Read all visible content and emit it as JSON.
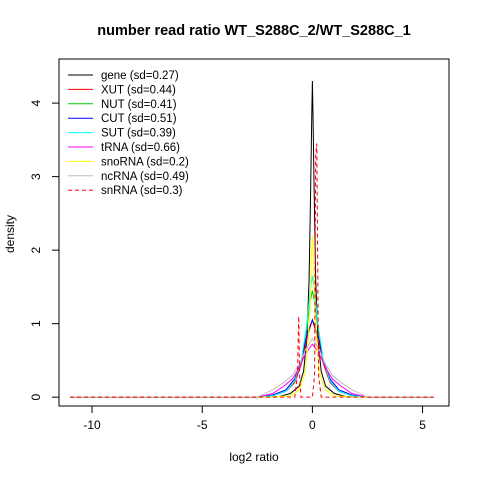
{
  "chart_data": {
    "type": "line",
    "title": "number read ratio WT_S288C_2/WT_S288C_1",
    "xlabel": "log2 ratio",
    "ylabel": "density",
    "xlim": [
      -11.5,
      6.2
    ],
    "ylim": [
      -0.12,
      4.6
    ],
    "xticks": [
      -10,
      -5,
      0,
      5
    ],
    "xtick_labels": [
      "-10",
      "-5",
      "0",
      "5"
    ],
    "yticks": [
      0,
      1,
      2,
      3,
      4
    ],
    "ytick_labels": [
      "0",
      "1",
      "2",
      "3",
      "4"
    ],
    "grid": false,
    "legend_position": "top-left",
    "series": [
      {
        "name": "gene (sd=0.27)",
        "color": "#000000",
        "dashed": false,
        "x": [
          -11,
          -2.5,
          -1.5,
          -1.0,
          -0.6,
          -0.4,
          -0.25,
          -0.15,
          -0.08,
          -0.03,
          0,
          0.03,
          0.08,
          0.15,
          0.25,
          0.4,
          0.6,
          1.0,
          1.5,
          2.5,
          5.5
        ],
        "y": [
          0,
          0,
          0.01,
          0.05,
          0.15,
          0.35,
          0.8,
          1.6,
          2.8,
          3.8,
          4.3,
          3.8,
          2.8,
          1.6,
          0.8,
          0.35,
          0.15,
          0.05,
          0.01,
          0,
          0
        ]
      },
      {
        "name": "XUT (sd=0.44)",
        "color": "#ff0000",
        "dashed": false,
        "x": [
          -11,
          -2.5,
          -1.8,
          -1.2,
          -0.8,
          -0.5,
          -0.25,
          0,
          0.25,
          0.5,
          0.8,
          1.2,
          1.8,
          2.5,
          5.5
        ],
        "y": [
          0,
          0,
          0.02,
          0.08,
          0.2,
          0.45,
          0.8,
          1.05,
          0.8,
          0.45,
          0.2,
          0.08,
          0.02,
          0,
          0
        ]
      },
      {
        "name": "NUT (sd=0.41)",
        "color": "#00cc00",
        "dashed": false,
        "x": [
          -11,
          -2.5,
          -1.8,
          -1.2,
          -0.8,
          -0.5,
          -0.25,
          -0.1,
          0,
          0.1,
          0.25,
          0.5,
          0.8,
          1.2,
          1.8,
          2.5,
          5.5
        ],
        "y": [
          0,
          0,
          0.02,
          0.08,
          0.22,
          0.5,
          0.95,
          1.3,
          1.45,
          1.3,
          0.95,
          0.5,
          0.22,
          0.08,
          0.02,
          0,
          0
        ]
      },
      {
        "name": "CUT (sd=0.51)",
        "color": "#0000ff",
        "dashed": false,
        "x": [
          -11,
          -2.5,
          -1.8,
          -1.2,
          -0.8,
          -0.5,
          -0.25,
          0,
          0.25,
          0.5,
          0.8,
          1.2,
          1.8,
          2.5,
          5.5
        ],
        "y": [
          0,
          0,
          0.03,
          0.1,
          0.25,
          0.5,
          0.85,
          1.05,
          0.85,
          0.5,
          0.25,
          0.1,
          0.03,
          0,
          0
        ]
      },
      {
        "name": "SUT (sd=0.39)",
        "color": "#00ffff",
        "dashed": false,
        "x": [
          -11,
          -2.5,
          -1.8,
          -1.2,
          -0.8,
          -0.5,
          -0.25,
          -0.1,
          0,
          0.1,
          0.25,
          0.5,
          0.8,
          1.2,
          1.8,
          2.5,
          5.5
        ],
        "y": [
          0,
          0,
          0.02,
          0.08,
          0.22,
          0.5,
          1.0,
          1.45,
          1.65,
          1.45,
          1.0,
          0.5,
          0.22,
          0.08,
          0.02,
          0,
          0
        ]
      },
      {
        "name": "tRNA (sd=0.66)",
        "color": "#ff00ff",
        "dashed": false,
        "x": [
          -11,
          -2.5,
          -1.8,
          -1.3,
          -0.9,
          -0.6,
          -0.3,
          0,
          0.3,
          0.6,
          0.9,
          1.3,
          1.8,
          2.5,
          5.5
        ],
        "y": [
          0,
          0,
          0.05,
          0.15,
          0.25,
          0.4,
          0.6,
          0.72,
          0.6,
          0.4,
          0.25,
          0.15,
          0.05,
          0,
          0
        ]
      },
      {
        "name": "snoRNA (sd=0.2)",
        "color": "#ffff00",
        "dashed": false,
        "x": [
          -11,
          -2.0,
          -1.0,
          -0.6,
          -0.35,
          -0.2,
          -0.1,
          -0.04,
          0,
          0.04,
          0.1,
          0.2,
          0.35,
          0.6,
          1.0,
          2.0,
          5.5
        ],
        "y": [
          0,
          0,
          0.02,
          0.1,
          0.3,
          0.7,
          1.3,
          1.95,
          2.2,
          1.95,
          1.3,
          0.7,
          0.3,
          0.1,
          0.02,
          0,
          0
        ]
      },
      {
        "name": "ncRNA (sd=0.49)",
        "color": "#bebebe",
        "dashed": false,
        "x": [
          -11,
          -2.5,
          -1.8,
          -1.3,
          -0.9,
          -0.6,
          -0.3,
          0,
          0.3,
          0.6,
          0.9,
          1.3,
          1.8,
          2.5,
          5.5
        ],
        "y": [
          0,
          0,
          0.1,
          0.2,
          0.3,
          0.45,
          0.65,
          0.8,
          0.65,
          0.45,
          0.3,
          0.2,
          0.1,
          0,
          0
        ]
      },
      {
        "name": "snRNA (sd=0.3)",
        "color": "#ff0000",
        "dashed": true,
        "x": [
          -11,
          -1.5,
          -0.8,
          -0.68,
          -0.62,
          -0.58,
          -0.52,
          -0.3,
          0,
          0.1,
          0.15,
          0.2,
          0.28,
          0.4,
          1.5,
          5.5
        ],
        "y": [
          0,
          0,
          0,
          0.3,
          1.1,
          0.3,
          0,
          0,
          0,
          0.3,
          3.3,
          3.45,
          0.3,
          0,
          0,
          0
        ]
      }
    ]
  }
}
